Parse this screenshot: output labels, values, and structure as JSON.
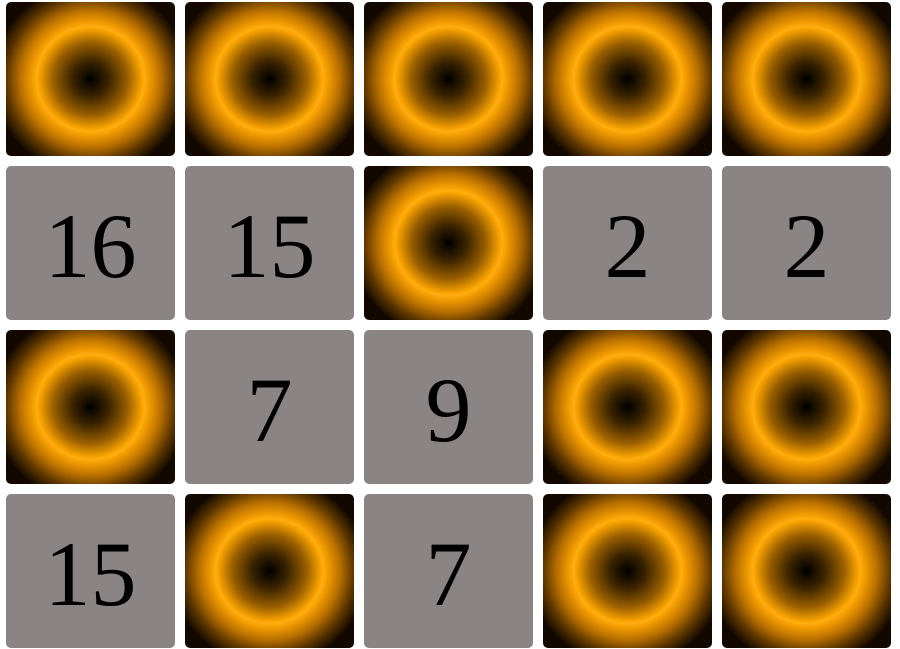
{
  "board": {
    "rows": 4,
    "columns": 5,
    "tiles": [
      {
        "state": "hidden",
        "value": null
      },
      {
        "state": "hidden",
        "value": null
      },
      {
        "state": "hidden",
        "value": null
      },
      {
        "state": "hidden",
        "value": null
      },
      {
        "state": "hidden",
        "value": null
      },
      {
        "state": "revealed",
        "value": "16"
      },
      {
        "state": "revealed",
        "value": "15"
      },
      {
        "state": "hidden",
        "value": null
      },
      {
        "state": "revealed",
        "value": "2"
      },
      {
        "state": "revealed",
        "value": "2"
      },
      {
        "state": "hidden",
        "value": null
      },
      {
        "state": "revealed",
        "value": "7"
      },
      {
        "state": "revealed",
        "value": "9"
      },
      {
        "state": "hidden",
        "value": null
      },
      {
        "state": "hidden",
        "value": null
      },
      {
        "state": "revealed",
        "value": "15"
      },
      {
        "state": "hidden",
        "value": null
      },
      {
        "state": "revealed",
        "value": "7"
      },
      {
        "state": "hidden",
        "value": null
      },
      {
        "state": "hidden",
        "value": null
      }
    ]
  },
  "colors": {
    "revealed_tile": "#8a8484",
    "hidden_tile_accent": "#ffad10",
    "hidden_tile_center": "#000000",
    "number_text": "#000000"
  }
}
